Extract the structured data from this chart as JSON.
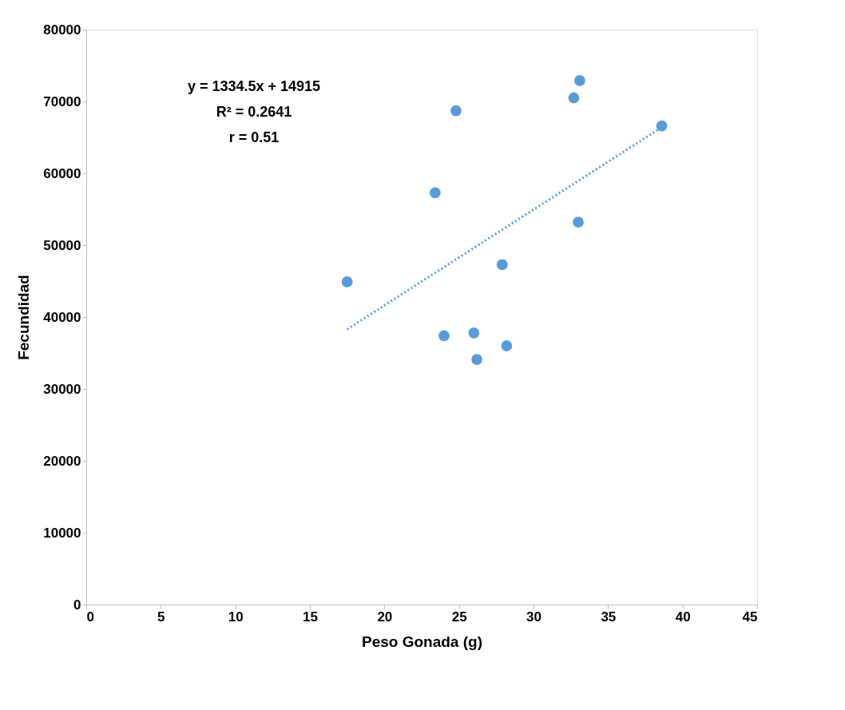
{
  "chart_data": {
    "type": "scatter",
    "xlabel": "Peso Gonada (g)",
    "ylabel": "Fecundidad",
    "xlim": [
      0,
      45
    ],
    "xticks": [
      0,
      5,
      10,
      15,
      20,
      25,
      30,
      35,
      40,
      45
    ],
    "ylim": [
      0,
      80000
    ],
    "yticks": [
      0,
      10000,
      20000,
      30000,
      40000,
      50000,
      60000,
      70000,
      80000
    ],
    "grid": false,
    "marker": "circle",
    "series": [
      {
        "color": "#5b9bd5",
        "x": [
          17.5,
          23.4,
          24.0,
          24.8,
          26.0,
          26.2,
          27.9,
          28.2,
          32.7,
          33.1,
          33.0,
          38.6
        ],
        "values": [
          44900,
          57300,
          37400,
          68700,
          37800,
          34100,
          47300,
          36000,
          70500,
          72900,
          53200,
          66600
        ]
      },
      {
        "type": "line",
        "color": "#5b9bd5",
        "line_style": "dotted",
        "marker": "none",
        "x": [
          17.5,
          38.6
        ],
        "values": [
          38300,
          66400
        ]
      }
    ],
    "annotations": [
      "y = 1334.5x + 14915",
      "R² = 0.2641",
      "r = 0.51"
    ]
  }
}
